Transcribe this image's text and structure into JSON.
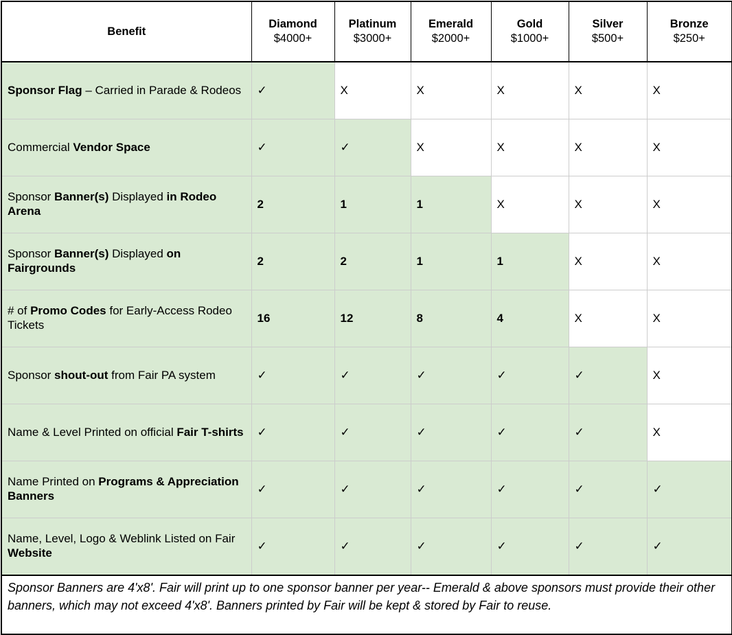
{
  "table": {
    "header": {
      "benefit_label": "Benefit",
      "tiers": [
        {
          "name": "Diamond",
          "amount": "$4000+"
        },
        {
          "name": "Platinum",
          "amount": "$3000+"
        },
        {
          "name": "Emerald",
          "amount": "$2000+"
        },
        {
          "name": "Gold",
          "amount": "$1000+"
        },
        {
          "name": "Silver",
          "amount": "$500+"
        },
        {
          "name": "Bronze",
          "amount": "$250+"
        }
      ]
    },
    "glyphs": {
      "included_check": "✓",
      "excluded_cross": "X"
    },
    "colors": {
      "included_bg": "#d9ead3",
      "excluded_bg": "#ffffff",
      "grid_light": "#cccccc",
      "grid_dark": "#000000"
    },
    "rows": [
      {
        "benefit": [
          {
            "text": "Sponsor Flag",
            "bold": true
          },
          {
            "text": " – Carried in Parade & Rodeos",
            "bold": false
          }
        ],
        "cells": [
          {
            "value": "✓",
            "included": true
          },
          {
            "value": "X",
            "included": false
          },
          {
            "value": "X",
            "included": false
          },
          {
            "value": "X",
            "included": false
          },
          {
            "value": "X",
            "included": false
          },
          {
            "value": "X",
            "included": false
          }
        ]
      },
      {
        "benefit": [
          {
            "text": "Commercial ",
            "bold": false
          },
          {
            "text": "Vendor Space",
            "bold": true
          }
        ],
        "cells": [
          {
            "value": "✓",
            "included": true
          },
          {
            "value": "✓",
            "included": true
          },
          {
            "value": "X",
            "included": false
          },
          {
            "value": "X",
            "included": false
          },
          {
            "value": "X",
            "included": false
          },
          {
            "value": "X",
            "included": false
          }
        ]
      },
      {
        "benefit": [
          {
            "text": "Sponsor ",
            "bold": false
          },
          {
            "text": "Banner(s)",
            "bold": true
          },
          {
            "text": " Displayed ",
            "bold": false
          },
          {
            "text": "in Rodeo Arena",
            "bold": true
          }
        ],
        "cells": [
          {
            "value": "2",
            "included": true
          },
          {
            "value": "1",
            "included": true
          },
          {
            "value": "1",
            "included": true
          },
          {
            "value": "X",
            "included": false
          },
          {
            "value": "X",
            "included": false
          },
          {
            "value": "X",
            "included": false
          }
        ]
      },
      {
        "benefit": [
          {
            "text": "Sponsor ",
            "bold": false
          },
          {
            "text": "Banner(s)",
            "bold": true
          },
          {
            "text": " Displayed ",
            "bold": false
          },
          {
            "text": "on Fairgrounds",
            "bold": true
          }
        ],
        "cells": [
          {
            "value": "2",
            "included": true
          },
          {
            "value": "2",
            "included": true
          },
          {
            "value": "1",
            "included": true
          },
          {
            "value": "1",
            "included": true
          },
          {
            "value": "X",
            "included": false
          },
          {
            "value": "X",
            "included": false
          }
        ]
      },
      {
        "benefit": [
          {
            "text": "# of ",
            "bold": false
          },
          {
            "text": "Promo Codes",
            "bold": true
          },
          {
            "text": " for Early-Access Rodeo Tickets",
            "bold": false
          }
        ],
        "cells": [
          {
            "value": "16",
            "included": true
          },
          {
            "value": "12",
            "included": true
          },
          {
            "value": "8",
            "included": true
          },
          {
            "value": "4",
            "included": true
          },
          {
            "value": "X",
            "included": false
          },
          {
            "value": "X",
            "included": false
          }
        ]
      },
      {
        "benefit": [
          {
            "text": "Sponsor ",
            "bold": false
          },
          {
            "text": "shout-out",
            "bold": true
          },
          {
            "text": " from Fair PA system",
            "bold": false
          }
        ],
        "cells": [
          {
            "value": "✓",
            "included": true
          },
          {
            "value": "✓",
            "included": true
          },
          {
            "value": "✓",
            "included": true
          },
          {
            "value": "✓",
            "included": true
          },
          {
            "value": "✓",
            "included": true
          },
          {
            "value": "X",
            "included": false
          }
        ]
      },
      {
        "benefit": [
          {
            "text": "Name & Level Printed on official ",
            "bold": false
          },
          {
            "text": "Fair T-shirts",
            "bold": true
          }
        ],
        "cells": [
          {
            "value": "✓",
            "included": true
          },
          {
            "value": "✓",
            "included": true
          },
          {
            "value": "✓",
            "included": true
          },
          {
            "value": "✓",
            "included": true
          },
          {
            "value": "✓",
            "included": true
          },
          {
            "value": "X",
            "included": false
          }
        ]
      },
      {
        "benefit": [
          {
            "text": "Name Printed on ",
            "bold": false
          },
          {
            "text": "Programs & Appreciation Banners",
            "bold": true
          }
        ],
        "cells": [
          {
            "value": "✓",
            "included": true
          },
          {
            "value": "✓",
            "included": true
          },
          {
            "value": "✓",
            "included": true
          },
          {
            "value": "✓",
            "included": true
          },
          {
            "value": "✓",
            "included": true
          },
          {
            "value": "✓",
            "included": true
          }
        ]
      },
      {
        "benefit": [
          {
            "text": "Name, Level, Logo & Weblink Listed on Fair ",
            "bold": false
          },
          {
            "text": "Website",
            "bold": true
          }
        ],
        "cells": [
          {
            "value": "✓",
            "included": true
          },
          {
            "value": "✓",
            "included": true
          },
          {
            "value": "✓",
            "included": true
          },
          {
            "value": "✓",
            "included": true
          },
          {
            "value": "✓",
            "included": true
          },
          {
            "value": "✓",
            "included": true
          }
        ]
      }
    ],
    "footnote": "Sponsor Banners are 4'x8'. Fair will print up to one sponsor banner per year-- Emerald & above sponsors must provide their other banners, which may not exceed 4'x8'. Banners printed by Fair will be kept & stored by Fair to reuse."
  }
}
